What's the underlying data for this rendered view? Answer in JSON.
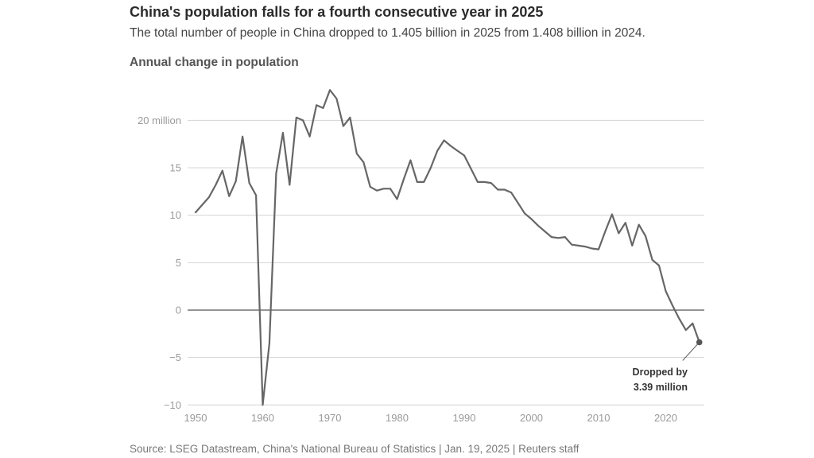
{
  "title": "China's population falls for a fourth consecutive year in 2025",
  "subtitle": "The total number of people in China dropped to 1.405 billion in 2025 from 1.408 billion in 2024.",
  "chart_label": "Annual change in population",
  "source": "Source: LSEG Datastream, China's National Bureau of Statistics | Jan. 19, 2025  | Reuters staff",
  "chart_data": {
    "type": "line",
    "title": "Annual change in population",
    "xlabel": "",
    "ylabel": "",
    "xlim": [
      1950,
      2026
    ],
    "ylim": [
      -10,
      23.5
    ],
    "y_ticks": [
      -10,
      -5,
      0,
      5,
      10,
      15,
      20
    ],
    "y_tick_labels": [
      "−10",
      "−5",
      "0",
      "5",
      "10",
      "15",
      "20 million"
    ],
    "x_ticks": [
      1950,
      1960,
      1970,
      1980,
      1990,
      2000,
      2010,
      2020
    ],
    "x_tick_labels": [
      "1950",
      "1960",
      "1970",
      "1980",
      "1990",
      "2000",
      "2010",
      "2020"
    ],
    "grid": true,
    "line_color": "#666666",
    "grid_color": "#d4d4d4",
    "zero_line_color": "#555555",
    "x": [
      1950,
      1951,
      1952,
      1953,
      1954,
      1955,
      1956,
      1957,
      1958,
      1959,
      1960,
      1961,
      1962,
      1963,
      1964,
      1965,
      1966,
      1967,
      1968,
      1969,
      1970,
      1971,
      1972,
      1973,
      1974,
      1975,
      1976,
      1977,
      1978,
      1979,
      1980,
      1981,
      1982,
      1983,
      1984,
      1985,
      1986,
      1987,
      1988,
      1989,
      1990,
      1991,
      1992,
      1993,
      1994,
      1995,
      1996,
      1997,
      1998,
      1999,
      2000,
      2001,
      2002,
      2003,
      2004,
      2005,
      2006,
      2007,
      2008,
      2009,
      2010,
      2011,
      2012,
      2013,
      2014,
      2015,
      2016,
      2017,
      2018,
      2019,
      2020,
      2021,
      2022,
      2023,
      2024,
      2025
    ],
    "values": [
      10.3,
      11.1,
      11.9,
      13.2,
      14.7,
      12.0,
      13.6,
      18.3,
      13.4,
      12.1,
      -10.0,
      -3.5,
      14.4,
      18.7,
      13.2,
      20.3,
      20.0,
      18.3,
      21.6,
      21.3,
      23.2,
      22.3,
      19.4,
      20.3,
      16.5,
      15.6,
      13.0,
      12.6,
      12.8,
      12.8,
      11.7,
      13.8,
      15.8,
      13.5,
      13.5,
      15.0,
      16.8,
      17.9,
      17.3,
      16.8,
      16.3,
      14.9,
      13.5,
      13.5,
      13.4,
      12.7,
      12.7,
      12.4,
      11.3,
      10.2,
      9.6,
      8.9,
      8.3,
      7.7,
      7.6,
      7.7,
      6.9,
      6.8,
      6.7,
      6.5,
      6.4,
      8.3,
      10.1,
      8.1,
      9.2,
      6.8,
      9.0,
      7.8,
      5.3,
      4.7,
      2.0,
      0.5,
      -0.9,
      -2.1,
      -1.4,
      -3.39
    ],
    "annotation": {
      "x": 2025,
      "y": -3.39,
      "lines": [
        "Dropped by",
        "3.39 million"
      ]
    }
  }
}
